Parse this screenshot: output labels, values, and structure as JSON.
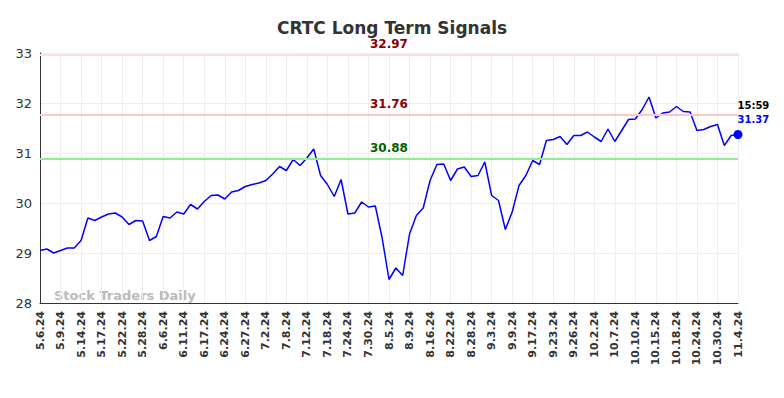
{
  "chart_data": {
    "type": "line",
    "title": "CRTC Long Term Signals",
    "watermark": "Stock Traders Daily",
    "last_label": "15:59",
    "color": "#0000ff",
    "grid": true,
    "categories": [
      "5.6.24",
      null,
      null,
      "5.9.24",
      null,
      null,
      "5.14.24",
      null,
      null,
      "5.17.24",
      null,
      null,
      "5.22.24",
      null,
      null,
      "5.28.24",
      null,
      null,
      "6.6.24",
      null,
      null,
      "6.11.24",
      null,
      null,
      "6.17.24",
      null,
      null,
      "6.24.24",
      null,
      null,
      "6.27.24",
      null,
      null,
      "7.2.24",
      null,
      null,
      "7.8.24",
      null,
      null,
      "7.12.24",
      null,
      null,
      "7.18.24",
      null,
      null,
      "7.24.24",
      null,
      null,
      "7.30.24",
      null,
      null,
      "8.5.24",
      null,
      null,
      "8.9.24",
      null,
      null,
      "8.16.24",
      null,
      null,
      "8.22.24",
      null,
      null,
      "8.28.24",
      null,
      null,
      "9.3.24",
      null,
      null,
      "9.9.24",
      null,
      null,
      "9.17.24",
      null,
      null,
      "9.23.24",
      null,
      null,
      "9.26.24",
      null,
      null,
      "10.2.24",
      null,
      null,
      "10.7.24",
      null,
      null,
      "10.10.24",
      null,
      null,
      "10.15.24",
      null,
      null,
      "10.18.24",
      null,
      null,
      "10.24.24",
      null,
      null,
      "10.30.24",
      null,
      null,
      "11.4.24"
    ],
    "values": [
      29.05,
      29.08,
      29.0,
      29.05,
      29.1,
      29.1,
      29.25,
      29.7,
      29.65,
      29.72,
      29.78,
      29.8,
      29.72,
      29.57,
      29.65,
      29.64,
      29.25,
      29.33,
      29.73,
      29.7,
      29.82,
      29.78,
      29.97,
      29.88,
      30.03,
      30.15,
      30.16,
      30.08,
      30.22,
      30.25,
      30.33,
      30.37,
      30.4,
      30.45,
      30.58,
      30.73,
      30.65,
      30.87,
      30.75,
      30.9,
      31.08,
      30.55,
      30.37,
      30.13,
      30.47,
      29.78,
      29.8,
      30.02,
      29.92,
      29.94,
      29.3,
      28.47,
      28.7,
      28.55,
      29.38,
      29.75,
      29.9,
      30.45,
      30.77,
      30.78,
      30.45,
      30.68,
      30.72,
      30.53,
      30.55,
      30.82,
      30.15,
      30.05,
      29.47,
      29.82,
      30.35,
      30.55,
      30.85,
      30.77,
      31.25,
      31.27,
      31.33,
      31.17,
      31.35,
      31.35,
      31.42,
      31.32,
      31.23,
      31.48,
      31.23,
      31.45,
      31.67,
      31.68,
      31.87,
      32.12,
      31.7,
      31.8,
      31.82,
      31.93,
      31.83,
      31.82,
      31.45,
      31.47,
      31.53,
      31.57,
      31.15,
      31.35,
      31.37
    ],
    "ylim": [
      28,
      33
    ],
    "yticks": [
      28,
      29,
      30,
      31,
      32,
      33
    ],
    "signal_lines": [
      {
        "value": 32.97,
        "color": "#ffdede",
        "label_color": "#8b0000"
      },
      {
        "value": 31.76,
        "color": "#ffc8c8",
        "label_color": "#8b0000"
      },
      {
        "value": 30.88,
        "color": "#90ee90",
        "label_color": "#006400"
      }
    ]
  }
}
